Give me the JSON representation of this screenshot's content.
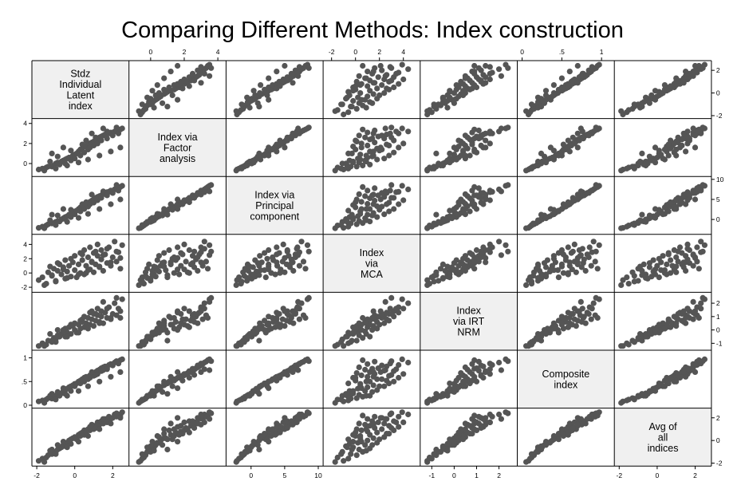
{
  "title": "Comparing Different Methods: Index construction",
  "chart_data": {
    "type": "scatter",
    "subtype": "scatter-matrix",
    "title": "Comparing Different Methods: Index construction",
    "marker_color": "#555555",
    "diagonal_fill": "#f0f0f0",
    "grid": false,
    "variables": [
      {
        "label": "Stdz\nIndividual\nLatent\nindex",
        "range": [
          -2,
          2.6
        ],
        "ticks": [
          -2,
          0,
          2
        ],
        "tick_labels": [
          "-2",
          "0",
          "2"
        ]
      },
      {
        "label": "Index via\nFactor\nanalysis",
        "range": [
          -1,
          4.2
        ],
        "ticks": [
          0,
          2,
          4
        ],
        "tick_labels": [
          "0",
          "2",
          "4"
        ]
      },
      {
        "label": "Index via\nPrincipal\ncomponent",
        "range": [
          -3,
          10
        ],
        "ticks": [
          0,
          5,
          10
        ],
        "tick_labels": [
          "0",
          "5",
          "10"
        ]
      },
      {
        "label": "Index\nvia\nMCA",
        "range": [
          -2.3,
          5
        ],
        "ticks": [
          -2,
          0,
          2,
          4
        ],
        "tick_labels": [
          "-2",
          "0",
          "2",
          "4"
        ]
      },
      {
        "label": "Index\nvia IRT\nNRM",
        "range": [
          -1.3,
          2.6
        ],
        "ticks": [
          -1,
          0,
          1,
          2
        ],
        "tick_labels": [
          "-1",
          "0",
          "1",
          "2"
        ]
      },
      {
        "label": "Composite\nindex",
        "range": [
          0,
          1.1
        ],
        "ticks": [
          0,
          0.5,
          1
        ],
        "tick_labels": [
          "0",
          ".5",
          "1"
        ]
      },
      {
        "label": "Avg of\nall\nindices",
        "range": [
          -2,
          2.6
        ],
        "ticks": [
          -2,
          0,
          2
        ],
        "tick_labels": [
          "-2",
          "0",
          "2"
        ]
      }
    ],
    "axis_positions": {
      "top": [
        1,
        3,
        5
      ],
      "bottom": [
        0,
        2,
        4,
        6
      ],
      "left": [
        1,
        3,
        5
      ],
      "right": [
        0,
        2,
        4,
        6
      ]
    },
    "observations": [
      [
        -1.9,
        -0.6,
        -2.1,
        -1.0,
        -1.2,
        0.08,
        -1.8
      ],
      [
        -1.7,
        -0.5,
        -1.8,
        -0.6,
        -1.0,
        0.1,
        -1.6
      ],
      [
        -1.5,
        -0.4,
        -1.5,
        -1.5,
        -1.1,
        0.12,
        -1.5
      ],
      [
        -1.4,
        -0.3,
        -1.2,
        0.1,
        -0.8,
        0.15,
        -1.3
      ],
      [
        -1.2,
        -0.3,
        -1.0,
        -0.4,
        -0.9,
        0.14,
        -1.2
      ],
      [
        -1.1,
        -0.2,
        -0.9,
        0.6,
        -0.6,
        0.18,
        -1.0
      ],
      [
        -1.0,
        0.0,
        -0.6,
        -1.1,
        -0.7,
        0.2,
        -1.0
      ],
      [
        -0.9,
        0.1,
        -0.4,
        0.3,
        -0.4,
        0.22,
        -0.8
      ],
      [
        -0.8,
        -0.1,
        -0.5,
        1.2,
        -0.5,
        0.2,
        -0.7
      ],
      [
        -0.7,
        0.2,
        0.0,
        -0.2,
        -0.3,
        0.25,
        -0.6
      ],
      [
        -0.6,
        0.3,
        0.3,
        0.8,
        -0.1,
        0.3,
        -0.4
      ],
      [
        -0.5,
        0.0,
        0.1,
        -0.8,
        -0.5,
        0.24,
        -0.5
      ],
      [
        -0.5,
        0.4,
        0.6,
        1.8,
        0.1,
        0.32,
        -0.2
      ],
      [
        -0.4,
        0.5,
        0.8,
        0.2,
        -0.2,
        0.35,
        -0.2
      ],
      [
        -0.3,
        0.6,
        1.2,
        1.0,
        0.2,
        0.38,
        0.0
      ],
      [
        -0.2,
        0.3,
        0.6,
        -0.5,
        -0.3,
        0.3,
        -0.3
      ],
      [
        -0.1,
        0.8,
        1.6,
        1.5,
        0.3,
        0.42,
        0.2
      ],
      [
        0.0,
        0.9,
        2.0,
        0.4,
        0.0,
        0.45,
        0.2
      ],
      [
        0.0,
        0.5,
        1.3,
        2.4,
        0.5,
        0.4,
        0.3
      ],
      [
        0.1,
        1.0,
        2.2,
        -0.6,
        -0.2,
        0.46,
        0.1
      ],
      [
        0.2,
        1.2,
        2.6,
        1.2,
        0.4,
        0.5,
        0.5
      ],
      [
        0.3,
        0.8,
        2.0,
        2.8,
        0.7,
        0.46,
        0.6
      ],
      [
        0.3,
        1.4,
        3.0,
        0.0,
        0.1,
        0.52,
        0.4
      ],
      [
        0.4,
        1.5,
        3.3,
        1.8,
        0.6,
        0.55,
        0.7
      ],
      [
        0.5,
        1.1,
        2.6,
        3.2,
        1.0,
        0.5,
        0.9
      ],
      [
        0.5,
        1.7,
        3.6,
        -0.2,
        0.2,
        0.58,
        0.5
      ],
      [
        0.6,
        1.8,
        3.9,
        1.0,
        0.5,
        0.6,
        0.8
      ],
      [
        0.7,
        1.4,
        3.2,
        2.2,
        0.9,
        0.55,
        1.0
      ],
      [
        0.8,
        2.0,
        4.4,
        0.5,
        0.4,
        0.63,
        0.9
      ],
      [
        0.8,
        1.6,
        3.8,
        3.6,
        1.3,
        0.58,
        1.2
      ],
      [
        0.9,
        2.1,
        4.7,
        1.6,
        0.8,
        0.66,
        1.1
      ],
      [
        1.0,
        2.2,
        5.0,
        0.1,
        0.3,
        0.68,
        1.0
      ],
      [
        1.0,
        1.8,
        4.2,
        2.8,
        1.2,
        0.62,
        1.3
      ],
      [
        1.1,
        2.4,
        5.3,
        1.2,
        0.7,
        0.7,
        1.3
      ],
      [
        1.2,
        2.5,
        5.6,
        2.4,
        1.1,
        0.73,
        1.5
      ],
      [
        1.2,
        2.0,
        4.8,
        4.0,
        1.6,
        0.66,
        1.6
      ],
      [
        1.3,
        2.6,
        5.8,
        0.8,
        0.6,
        0.75,
        1.4
      ],
      [
        1.4,
        2.7,
        6.0,
        1.9,
        1.0,
        0.78,
        1.6
      ],
      [
        1.4,
        2.3,
        5.4,
        3.2,
        1.4,
        0.72,
        1.7
      ],
      [
        1.5,
        2.8,
        6.3,
        0.3,
        0.5,
        0.8,
        1.5
      ],
      [
        1.6,
        2.9,
        6.6,
        2.6,
        1.3,
        0.82,
        1.9
      ],
      [
        1.7,
        2.5,
        6.0,
        1.4,
        0.9,
        0.77,
        1.7
      ],
      [
        1.8,
        3.0,
        6.9,
        3.6,
        1.7,
        0.85,
        2.1
      ],
      [
        1.9,
        3.1,
        7.2,
        1.0,
        0.8,
        0.87,
        1.9
      ],
      [
        2.0,
        2.8,
        6.6,
        2.2,
        1.2,
        0.84,
        2.0
      ],
      [
        2.1,
        3.2,
        7.5,
        4.4,
        2.0,
        0.9,
        2.3
      ],
      [
        2.2,
        3.3,
        7.8,
        1.6,
        1.1,
        0.92,
        2.1
      ],
      [
        2.3,
        3.0,
        7.2,
        2.9,
        1.6,
        0.88,
        2.3
      ],
      [
        2.4,
        3.4,
        8.1,
        0.6,
        0.9,
        0.95,
        2.2
      ],
      [
        2.5,
        3.5,
        8.4,
        3.9,
        2.3,
        0.97,
        2.5
      ],
      [
        -1.3,
        0.2,
        -0.2,
        0.9,
        -0.3,
        0.2,
        -0.9
      ],
      [
        -0.9,
        0.7,
        1.0,
        1.4,
        0.0,
        0.28,
        -0.4
      ],
      [
        -0.2,
        1.3,
        2.4,
        2.0,
        0.4,
        0.4,
        0.1
      ],
      [
        0.4,
        1.9,
        3.8,
        2.6,
        0.8,
        0.52,
        0.6
      ],
      [
        1.1,
        2.6,
        5.4,
        3.0,
        1.2,
        0.64,
        1.1
      ],
      [
        1.7,
        3.2,
        6.8,
        3.4,
        1.6,
        0.76,
        1.6
      ],
      [
        -1.6,
        -0.7,
        -2.2,
        -1.7,
        -1.2,
        0.05,
        -1.9
      ],
      [
        -1.0,
        -0.5,
        -1.4,
        -1.2,
        -0.9,
        0.12,
        -1.2
      ],
      [
        -0.4,
        -0.2,
        -0.6,
        -0.7,
        -0.5,
        0.2,
        -0.6
      ],
      [
        0.2,
        0.1,
        0.4,
        -0.2,
        -0.2,
        0.3,
        -0.1
      ],
      [
        0.7,
        0.4,
        1.4,
        0.4,
        0.1,
        0.4,
        0.4
      ],
      [
        1.3,
        0.8,
        2.6,
        0.9,
        0.5,
        0.5,
        1.0
      ],
      [
        1.9,
        1.2,
        3.8,
        1.5,
        0.9,
        0.6,
        1.5
      ],
      [
        2.4,
        1.6,
        5.0,
        2.1,
        1.4,
        0.7,
        2.0
      ],
      [
        0.6,
        2.3,
        4.3,
        0.0,
        0.2,
        0.58,
        0.7
      ],
      [
        -0.6,
        1.6,
        2.6,
        0.5,
        0.0,
        0.36,
        -0.1
      ],
      [
        1.5,
        3.5,
        7.0,
        2.5,
        2.1,
        0.74,
        1.9
      ],
      [
        0.9,
        3.0,
        6.2,
        1.5,
        1.4,
        0.7,
        1.4
      ],
      [
        -1.2,
        1.0,
        1.2,
        -0.3,
        -0.8,
        0.24,
        -0.8
      ],
      [
        2.2,
        3.6,
        8.6,
        3.0,
        2.4,
        0.93,
        2.4
      ]
    ]
  }
}
